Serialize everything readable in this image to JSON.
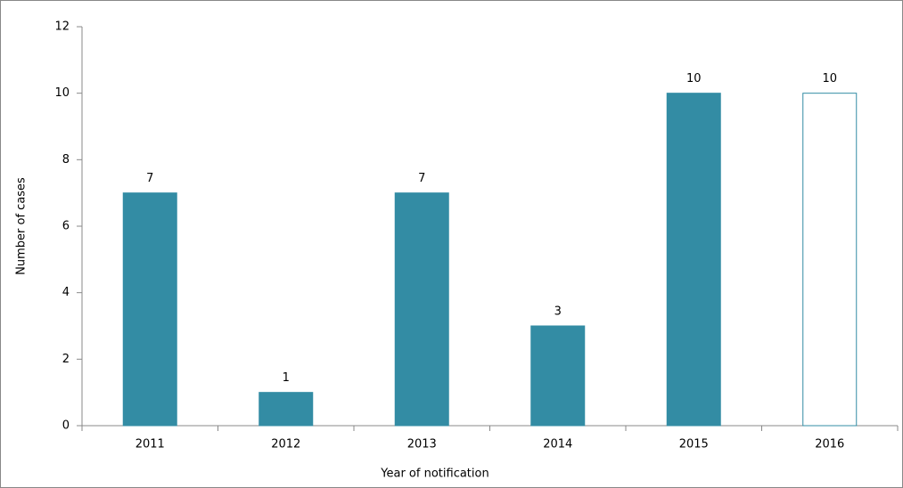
{
  "chart_data": {
    "type": "bar",
    "x_label": "Year of notification",
    "y_label": "Number of cases",
    "categories": [
      "2011",
      "2012",
      "2013",
      "2014",
      "2015",
      "2016"
    ],
    "values": [
      7,
      1,
      7,
      3,
      10,
      10
    ],
    "colors": [
      "#338ca4",
      "#338ca4",
      "#338ca4",
      "#338ca4",
      "#338ca4",
      "#ffffff"
    ],
    "edge_color": "#338ca4",
    "ylim": [
      0,
      12
    ],
    "yticks": [
      0,
      2,
      4,
      6,
      8,
      10,
      12
    ]
  }
}
